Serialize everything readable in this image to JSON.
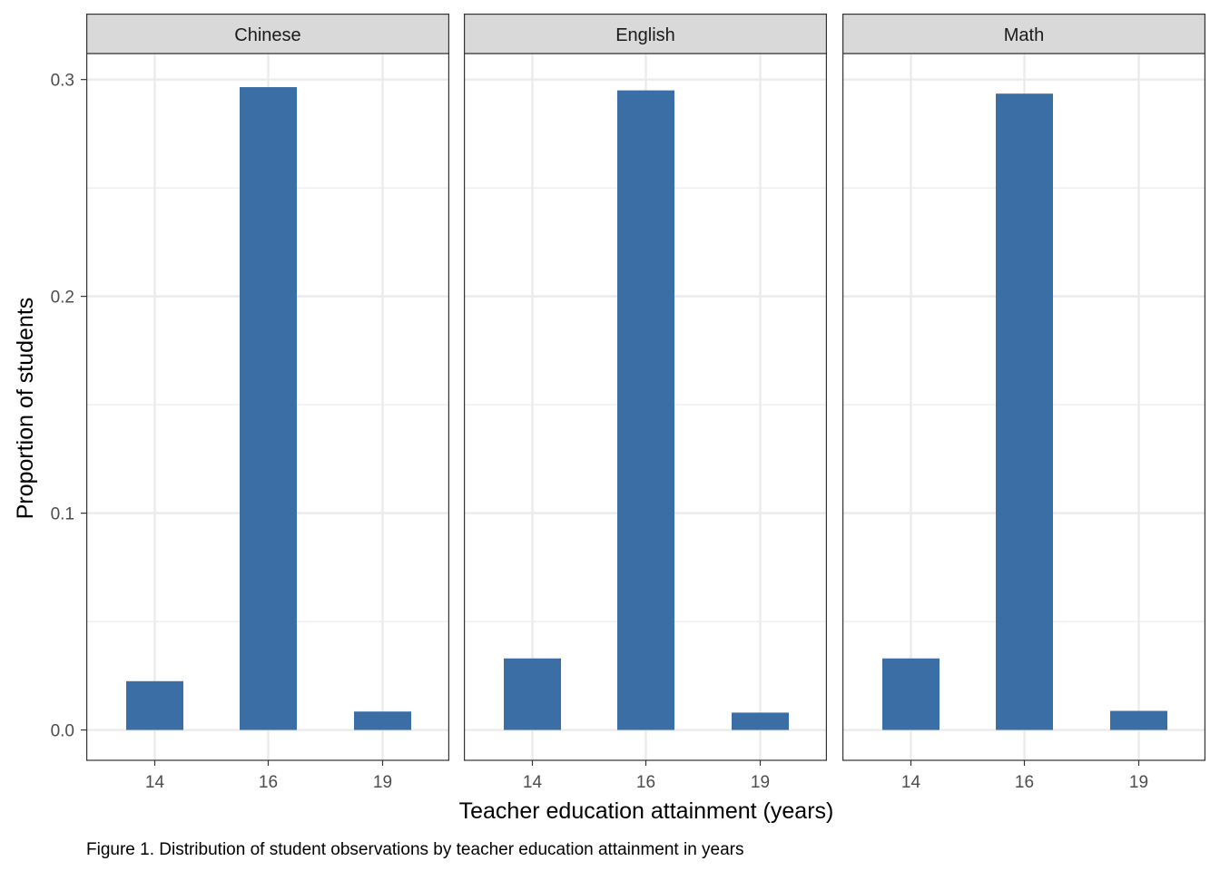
{
  "chart_data": {
    "type": "bar",
    "facet_by": "subject",
    "categories": [
      "14",
      "16",
      "19"
    ],
    "panels": [
      {
        "label": "Chinese",
        "values": [
          0.0225,
          0.2965,
          0.0085
        ]
      },
      {
        "label": "English",
        "values": [
          0.033,
          0.295,
          0.008
        ]
      },
      {
        "label": "Math",
        "values": [
          0.033,
          0.2935,
          0.0088
        ]
      }
    ],
    "ylim": [
      -0.014,
      0.312
    ],
    "y_major_ticks": [
      0.0,
      0.1,
      0.2,
      0.3
    ],
    "y_tick_labels": [
      "0.0",
      "0.1",
      "0.2",
      "0.3"
    ],
    "y_minor_ticks": [
      0.05,
      0.15,
      0.25
    ],
    "xlabel": "Teacher education attainment (years)",
    "ylabel": "Proportion of students",
    "caption": "Figure 1. Distribution of student observations by teacher education attainment in years",
    "grid": true,
    "bar_color": "#3a6ea5",
    "grid_color": "#ebebeb",
    "strip_fill": "#d9d9d9",
    "frame_color": "#333333"
  }
}
